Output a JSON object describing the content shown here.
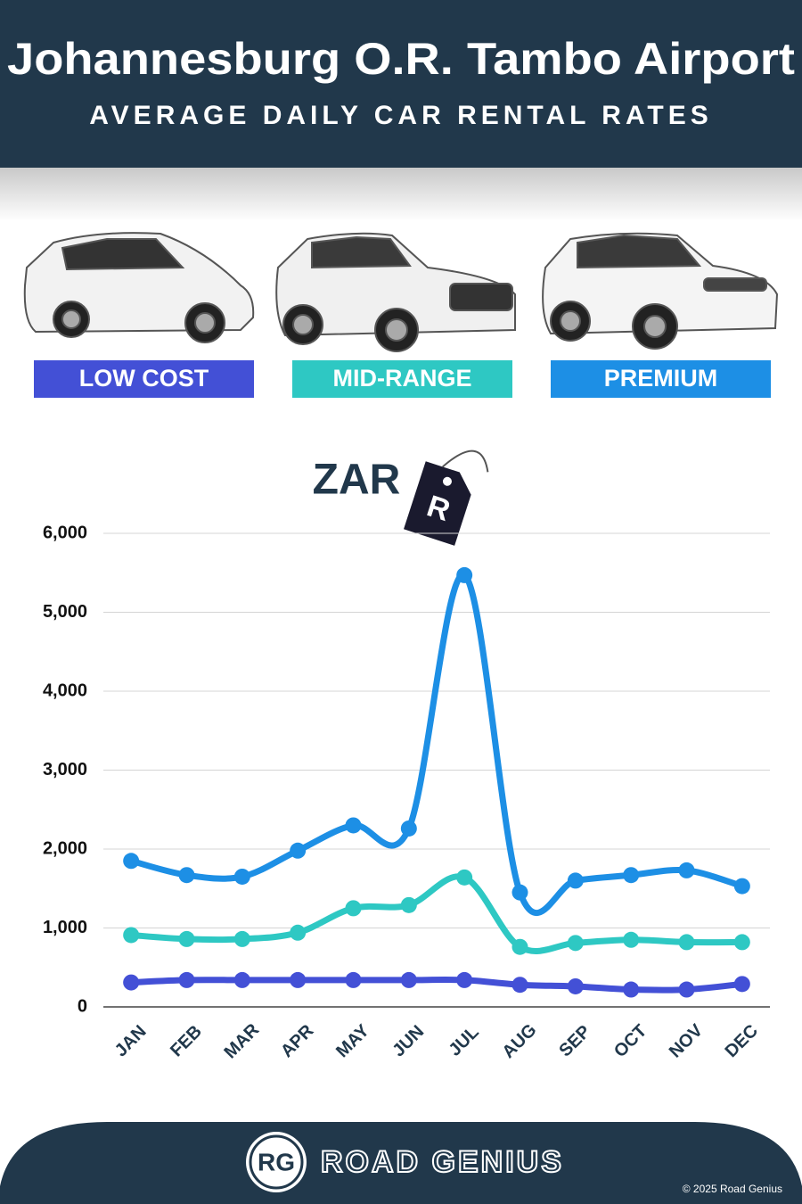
{
  "chart_data": {
    "type": "line",
    "title": "Johannesburg O.R. Tambo Airport",
    "subtitle": "AVERAGE DAILY CAR RENTAL RATES",
    "unit_label": "ZAR",
    "unit_tag": "R",
    "categories": [
      "JAN",
      "FEB",
      "MAR",
      "APR",
      "MAY",
      "JUN",
      "JUL",
      "AUG",
      "SEP",
      "OCT",
      "NOV",
      "DEC"
    ],
    "series": [
      {
        "name": "LOW COST",
        "color": "#4350d6",
        "values": [
          310,
          340,
          340,
          340,
          340,
          340,
          340,
          280,
          260,
          220,
          220,
          290
        ]
      },
      {
        "name": "MID-RANGE",
        "color": "#2ec8c3",
        "values": [
          910,
          860,
          860,
          940,
          1250,
          1290,
          1640,
          760,
          810,
          850,
          820,
          820
        ]
      },
      {
        "name": "PREMIUM",
        "color": "#1d8fe5",
        "values": [
          1850,
          1670,
          1650,
          1980,
          2300,
          2260,
          5470,
          1450,
          1600,
          1670,
          1730,
          1530
        ]
      }
    ],
    "ylim": [
      0,
      6000
    ],
    "yticks": [
      0,
      {
        "value": 1000,
        "label": "1,000"
      },
      {
        "value": 2000,
        "label": "2,000"
      },
      {
        "value": 3000,
        "label": "3,000"
      },
      {
        "value": 4000,
        "label": "4,000"
      },
      {
        "value": 5000,
        "label": "5,000"
      },
      {
        "value": 6000,
        "label": "6,000"
      }
    ],
    "grid": true
  },
  "footer": {
    "logo": "RG",
    "brand": "ROAD GENIUS",
    "copyright": "© 2025 Road Genius"
  }
}
